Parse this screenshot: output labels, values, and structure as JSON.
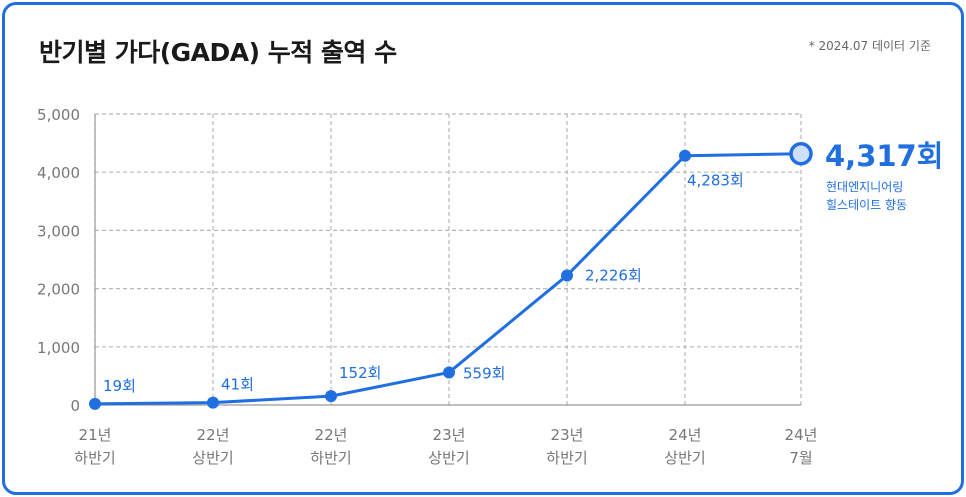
{
  "header": {
    "title": "반기별 가다(GADA) 누적 출역 수",
    "note": "* 2024.07 데이터 기준"
  },
  "colors": {
    "accent": "#1f6fe0",
    "grid": "#b8b8b8",
    "axis_text": "#777777"
  },
  "chart_data": {
    "type": "line",
    "title": "반기별 가다(GADA) 누적 출역 수",
    "categories": [
      [
        "21년",
        "하반기"
      ],
      [
        "22년",
        "상반기"
      ],
      [
        "22년",
        "하반기"
      ],
      [
        "23년",
        "상반기"
      ],
      [
        "23년",
        "하반기"
      ],
      [
        "24년",
        "상반기"
      ],
      [
        "24년",
        "7월"
      ]
    ],
    "values": [
      19,
      41,
      152,
      559,
      2226,
      4283,
      4317
    ],
    "data_labels": [
      "19회",
      "41회",
      "152회",
      "559회",
      "2,226회",
      "4,283회",
      "4,317회"
    ],
    "highlight": {
      "index": 6,
      "label": "4,317회",
      "sub_lines": [
        "현대엔지니어링",
        "힐스테이트 향동"
      ]
    },
    "ylim": [
      0,
      5000
    ],
    "yticks": [
      0,
      1000,
      2000,
      3000,
      4000,
      5000
    ],
    "ytick_labels": [
      "0",
      "1,000",
      "2,000",
      "3,000",
      "4,000",
      "5,000"
    ],
    "grid": true,
    "legend": "none"
  }
}
